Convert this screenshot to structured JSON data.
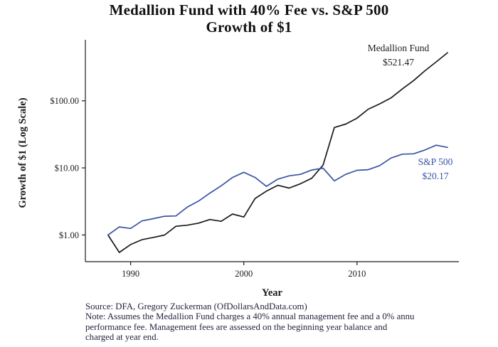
{
  "title": {
    "line1": "Medallion Fund with 40% Fee vs. S&P 500",
    "line2": "Growth of $1"
  },
  "footer": {
    "lines": [
      "Source: DFA, Gregory Zuckerman (OfDollarsAndData.com)",
      "Note: Assumes the Medallion Fund charges a 40% annual management fee and a 0% annu",
      "performance fee. Management fees are assessed on the beginning year balance and",
      "charged at year end."
    ]
  },
  "chart_data": {
    "type": "line",
    "title": "Medallion Fund with 40% Fee vs. S&P 500 — Growth of $1",
    "xlabel": "Year",
    "ylabel": "Growth of $1 (Log Scale)",
    "y_scale": "log10",
    "grid": false,
    "legend": "inline-annotations",
    "xlim": [
      1986,
      2019
    ],
    "ylim": [
      0.4,
      700
    ],
    "x_ticks": [
      {
        "value": 1990,
        "label": "1990"
      },
      {
        "value": 2000,
        "label": "2000"
      },
      {
        "value": 2010,
        "label": "2010"
      }
    ],
    "y_ticks": [
      {
        "value": 1,
        "label": "$1.00"
      },
      {
        "value": 10,
        "label": "$10.00"
      },
      {
        "value": 100,
        "label": "$100.00"
      }
    ],
    "x": [
      1988,
      1989,
      1990,
      1991,
      1992,
      1993,
      1994,
      1995,
      1996,
      1997,
      1998,
      1999,
      2000,
      2001,
      2002,
      2003,
      2004,
      2005,
      2006,
      2007,
      2008,
      2009,
      2010,
      2011,
      2012,
      2013,
      2014,
      2015,
      2016,
      2017,
      2018
    ],
    "series": [
      {
        "name": "Medallion Fund",
        "color": "#1a1a1a",
        "final_value": 521.47,
        "values": [
          1.0,
          0.55,
          0.72,
          0.85,
          0.92,
          1.0,
          1.35,
          1.4,
          1.5,
          1.7,
          1.6,
          2.05,
          1.85,
          3.5,
          4.5,
          5.5,
          5.0,
          5.8,
          7.0,
          11.0,
          40.0,
          45.0,
          55.0,
          75.0,
          90.0,
          110.0,
          150.0,
          200.0,
          280.0,
          380.0,
          521.47
        ]
      },
      {
        "name": "S&P 500",
        "color": "#3a53a4",
        "final_value": 20.17,
        "values": [
          1.0,
          1.32,
          1.25,
          1.62,
          1.75,
          1.9,
          1.92,
          2.6,
          3.2,
          4.2,
          5.4,
          7.2,
          8.6,
          7.2,
          5.3,
          6.8,
          7.6,
          8.0,
          9.3,
          9.9,
          6.4,
          8.0,
          9.2,
          9.4,
          10.8,
          14.0,
          16.0,
          16.2,
          18.5,
          21.8,
          20.17
        ]
      }
    ],
    "annotations": [
      {
        "lines": [
          "Medallion Fund",
          "$521.47"
        ],
        "color": "#1a1a1a"
      },
      {
        "lines": [
          "S&P 500",
          "$20.17"
        ],
        "color": "#3a53a4"
      }
    ]
  }
}
